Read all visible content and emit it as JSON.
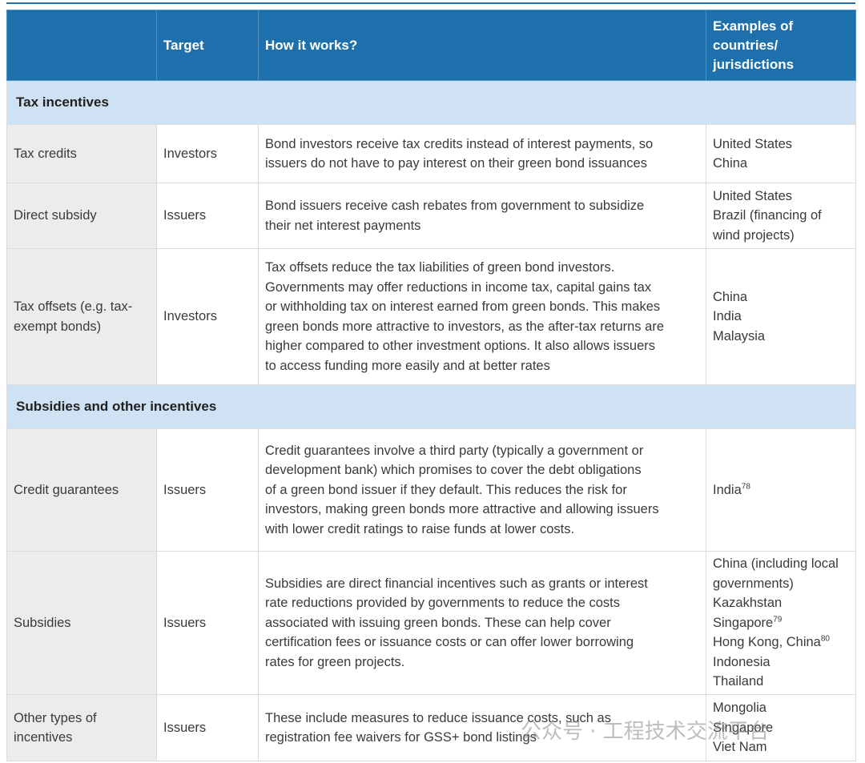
{
  "header": {
    "target": "Target",
    "how": "How it works?",
    "examples": [
      "Examples of",
      "countries/",
      "jurisdictions"
    ]
  },
  "sections": [
    {
      "title": "Tax incentives",
      "rows": [
        {
          "name": [
            "Tax credits"
          ],
          "target": "Investors",
          "description": [
            "Bond investors receive tax credits instead of interest payments, so",
            "issuers do not have to pay interest on their green bond issuances"
          ],
          "examples": [
            {
              "text": "United States"
            },
            {
              "text": "China"
            }
          ]
        },
        {
          "name": [
            "Direct subsidy"
          ],
          "target": "Issuers",
          "description": [
            "Bond issuers receive cash rebates from government to subsidize",
            "their net interest payments"
          ],
          "examples": [
            {
              "text": "United States"
            },
            {
              "text": "Brazil (financing of"
            },
            {
              "text": "wind projects)"
            }
          ]
        },
        {
          "name": [
            "Tax offsets (e.g. tax-",
            "exempt bonds)"
          ],
          "target": "Investors",
          "description": [
            "Tax offsets reduce the tax liabilities of green bond investors.",
            "Governments may offer reductions in income tax, capital gains tax",
            "or withholding tax on interest earned from green bonds. This makes",
            "green bonds more attractive to investors, as the after-tax returns are",
            "higher compared to other investment options. It also allows issuers",
            "to access funding more easily and at better rates"
          ],
          "examples": [
            {
              "text": "China"
            },
            {
              "text": "India"
            },
            {
              "text": "Malaysia"
            }
          ]
        }
      ]
    },
    {
      "title": "Subsidies and other incentives",
      "rows": [
        {
          "name": [
            "Credit guarantees"
          ],
          "target": "Issuers",
          "description": [
            "Credit guarantees involve a third party (typically a government or",
            "development bank) which promises to cover the debt obligations",
            "of a green bond issuer if they default. This reduces the risk for",
            "investors, making green bonds more attractive and allowing issuers",
            "with lower credit ratings to raise funds at lower costs."
          ],
          "examples": [
            {
              "text": "India",
              "sup": "78"
            }
          ]
        },
        {
          "name": [
            "Subsidies"
          ],
          "target": "Issuers",
          "description": [
            "Subsidies are direct financial incentives such as grants or interest",
            "rate reductions provided by governments to reduce the costs",
            "associated with issuing green bonds. These can help cover",
            "certification fees or issuance costs or can offer lower borrowing",
            "rates for green projects."
          ],
          "examples": [
            {
              "text": "China (including local"
            },
            {
              "text": "governments)"
            },
            {
              "text": "Kazakhstan"
            },
            {
              "text": "Singapore",
              "sup": "79"
            },
            {
              "text": "Hong Kong, China",
              "sup": "80"
            },
            {
              "text": "Indonesia"
            },
            {
              "text": "Thailand"
            }
          ]
        },
        {
          "name": [
            "Other types of",
            "incentives"
          ],
          "target": "Issuers",
          "description": [
            "These include measures to reduce issuance costs, such as",
            "registration fee waivers for GSS+ bond listings"
          ],
          "examples": [
            {
              "text": "Mongolia"
            },
            {
              "text": "Singapore"
            },
            {
              "text": "Viet Nam"
            }
          ]
        }
      ]
    }
  ],
  "watermark": "公众号 · 工程技术交流平台"
}
